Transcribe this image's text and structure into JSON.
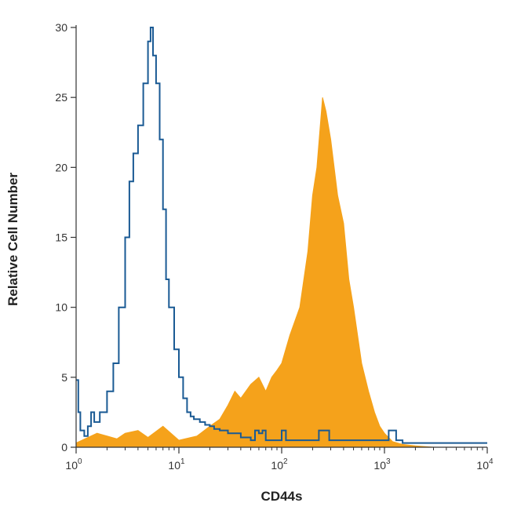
{
  "chart_data": {
    "type": "area",
    "title": "",
    "xlabel": "CD44s",
    "ylabel": "Relative Cell Number",
    "x_scale": "log",
    "xlim": [
      1,
      10000
    ],
    "ylim": [
      0,
      30
    ],
    "x_ticks": [
      {
        "value": 1,
        "base": "10",
        "exp": "0"
      },
      {
        "value": 10,
        "base": "10",
        "exp": "1"
      },
      {
        "value": 100,
        "base": "10",
        "exp": "2"
      },
      {
        "value": 1000,
        "base": "10",
        "exp": "3"
      },
      {
        "value": 10000,
        "base": "10",
        "exp": "4"
      }
    ],
    "y_ticks": [
      0,
      5,
      10,
      15,
      20,
      25,
      30
    ],
    "grid": false,
    "legend": "none",
    "series": [
      {
        "style": "filled",
        "color": "#f5a21b",
        "x": [
          1.0,
          1.6,
          2.0,
          2.5,
          3.0,
          4.0,
          5.0,
          7.0,
          10.0,
          15.0,
          20.0,
          25.0,
          30.0,
          35.0,
          40.0,
          50.0,
          60.0,
          70.0,
          80.0,
          90.0,
          100.0,
          120.0,
          150.0,
          180.0,
          200.0,
          220.0,
          250.0,
          270.0,
          300.0,
          350.0,
          400.0,
          450.0,
          500.0,
          600.0,
          700.0,
          800.0,
          900.0,
          1000.0,
          1200.0,
          1500.0,
          2000.0,
          3000.0,
          5000.0,
          10000.0
        ],
        "y": [
          0.3,
          1.0,
          0.8,
          0.6,
          1.0,
          1.2,
          0.7,
          1.5,
          0.5,
          0.8,
          1.5,
          2.0,
          3.0,
          4.0,
          3.5,
          4.5,
          5.0,
          4.0,
          5.0,
          5.5,
          6.0,
          8.0,
          10.0,
          14.0,
          18.0,
          20.0,
          25.0,
          24.0,
          22.0,
          18.0,
          16.0,
          12.0,
          10.0,
          6.0,
          4.0,
          2.5,
          1.5,
          1.0,
          0.4,
          0.2,
          0.1,
          0.0,
          0.0,
          0.0
        ]
      },
      {
        "style": "outline",
        "color": "#1a5a94",
        "x": [
          1.0,
          1.05,
          1.1,
          1.2,
          1.3,
          1.4,
          1.5,
          1.7,
          2.0,
          2.3,
          2.6,
          3.0,
          3.3,
          3.6,
          4.0,
          4.5,
          5.0,
          5.3,
          5.6,
          6.0,
          6.5,
          7.0,
          7.5,
          8.0,
          9.0,
          10.0,
          11.0,
          12.0,
          13.0,
          14.0,
          16.0,
          18.0,
          20.0,
          22.0,
          25.0,
          30.0,
          40.0,
          50.0,
          55.0,
          60.0,
          65.0,
          70.0,
          90.0,
          100.0,
          110.0,
          120.0,
          200.0,
          230.0,
          260.0,
          290.0,
          1000.0,
          1100.0,
          1200.0,
          1300.0,
          1500.0,
          3000.0,
          10000.0
        ],
        "y": [
          4.8,
          2.5,
          1.2,
          0.8,
          1.5,
          2.5,
          1.8,
          2.5,
          4.0,
          6.0,
          10.0,
          15.0,
          19.0,
          21.0,
          23.0,
          26.0,
          29.0,
          30.0,
          28.0,
          26.0,
          22.0,
          17.0,
          12.0,
          10.0,
          7.0,
          5.0,
          3.5,
          2.5,
          2.2,
          2.0,
          1.8,
          1.6,
          1.5,
          1.3,
          1.2,
          1.0,
          0.7,
          0.5,
          1.2,
          1.0,
          1.2,
          0.5,
          0.5,
          1.2,
          0.5,
          0.5,
          0.5,
          1.2,
          1.2,
          0.5,
          0.5,
          1.2,
          1.2,
          0.5,
          0.3,
          0.3,
          0.3
        ]
      }
    ]
  }
}
